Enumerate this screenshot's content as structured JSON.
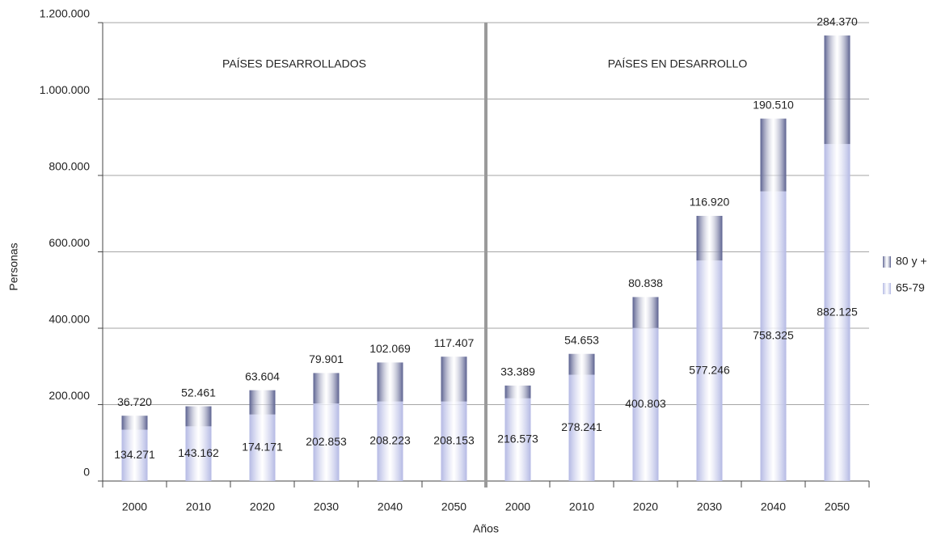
{
  "chart_data": {
    "type": "bar",
    "stacked": true,
    "annotations": [
      "PAÍSES DESARROLLADOS",
      "PAÍSES EN DESARROLLO"
    ],
    "y_label": "Personas",
    "x_label": "Años",
    "categories": [
      "2000",
      "2010",
      "2020",
      "2030",
      "2040",
      "2050",
      "2000",
      "2010",
      "2020",
      "2030",
      "2040",
      "2050"
    ],
    "series": [
      {
        "name": "65-79",
        "color": "#b4b9e4",
        "values": [
          134271,
          143162,
          174171,
          202853,
          208223,
          208153,
          216573,
          278241,
          400803,
          577246,
          758325,
          882125
        ],
        "value_labels": [
          "134.271",
          "143.162",
          "174.171",
          "202.853",
          "208.223",
          "208.153",
          "216.573",
          "278.241",
          "400.803",
          "577.246",
          "758.325",
          "882.125"
        ]
      },
      {
        "name": "80 y +",
        "color": "#5b6190",
        "values": [
          36720,
          52461,
          63604,
          79901,
          102069,
          117407,
          33389,
          54653,
          80838,
          116920,
          190510,
          284370
        ],
        "value_labels": [
          "36.720",
          "52.461",
          "63.604",
          "79.901",
          "102.069",
          "117.407",
          "33.389",
          "54.653",
          "80.838",
          "116.920",
          "190.510",
          "284.370"
        ]
      }
    ],
    "ylim": [
      0,
      1200000
    ],
    "yticks": [
      0,
      {
        "value": 200000,
        "label": "200.000"
      },
      {
        "value": 400000,
        "label": "400.000"
      },
      {
        "value": 600000,
        "label": "600.000"
      },
      {
        "value": 800000,
        "label": "800.000"
      },
      {
        "value": 1000000,
        "label": "1.000.000"
      },
      {
        "value": 1200000,
        "label": "1.200.000"
      }
    ],
    "grid": true,
    "legend": "right"
  }
}
